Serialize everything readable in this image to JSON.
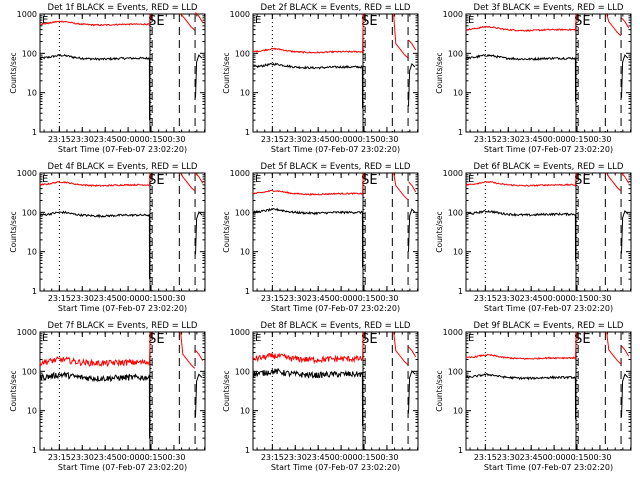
{
  "colors": {
    "background": "#ffffff",
    "axis": "#000000",
    "events": "#000000",
    "lld": "#ff0000"
  },
  "shared": {
    "ylabel": "Counts/sec",
    "xlabel": "Start Time (07-Feb-07 23:02:20)",
    "x_tick_labels": [
      "23:15",
      "23:30",
      "23:45",
      "00:00",
      "00:15",
      "00:30"
    ],
    "y_tick_labels": [
      "1",
      "10",
      "100",
      "1000"
    ],
    "corner_letter": "E",
    "marker_text": "SE"
  },
  "chart_data": [
    {
      "type": "line",
      "title": "Det 1f BLACK = Events, RED = LLD",
      "ylim": [
        1,
        1000
      ],
      "yscale": "log",
      "x_minutes": [
        0,
        108
      ],
      "series": [
        {
          "name": "Events",
          "level": 75
        },
        {
          "name": "LLD",
          "level": 550
        }
      ]
    },
    {
      "type": "line",
      "title": "Det 2f BLACK = Events, RED = LLD",
      "ylim": [
        1,
        1000
      ],
      "yscale": "log",
      "x_minutes": [
        0,
        108
      ],
      "series": [
        {
          "name": "Events",
          "level": 45
        },
        {
          "name": "LLD",
          "level": 110
        }
      ]
    },
    {
      "type": "line",
      "title": "Det 3f BLACK = Events, RED = LLD",
      "ylim": [
        1,
        1000
      ],
      "yscale": "log",
      "x_minutes": [
        0,
        108
      ],
      "series": [
        {
          "name": "Events",
          "level": 75
        },
        {
          "name": "LLD",
          "level": 400
        }
      ]
    },
    {
      "type": "line",
      "title": "Det 4f BLACK = Events, RED = LLD",
      "ylim": [
        1,
        1000
      ],
      "yscale": "log",
      "x_minutes": [
        0,
        108
      ],
      "series": [
        {
          "name": "Events",
          "level": 85
        },
        {
          "name": "LLD",
          "level": 500
        }
      ]
    },
    {
      "type": "line",
      "title": "Det 5f BLACK = Events, RED = LLD",
      "ylim": [
        1,
        1000
      ],
      "yscale": "log",
      "x_minutes": [
        0,
        108
      ],
      "series": [
        {
          "name": "Events",
          "level": 100
        },
        {
          "name": "LLD",
          "level": 300
        }
      ]
    },
    {
      "type": "line",
      "title": "Det 6f BLACK = Events, RED = LLD",
      "ylim": [
        1,
        1000
      ],
      "yscale": "log",
      "x_minutes": [
        0,
        108
      ],
      "series": [
        {
          "name": "Events",
          "level": 90
        },
        {
          "name": "LLD",
          "level": 500
        }
      ]
    },
    {
      "type": "line",
      "title": "Det 7f BLACK = Events, RED = LLD",
      "ylim": [
        1,
        1000
      ],
      "yscale": "log",
      "x_minutes": [
        0,
        108
      ],
      "series": [
        {
          "name": "Events",
          "level": 70
        },
        {
          "name": "LLD",
          "level": 170
        }
      ]
    },
    {
      "type": "line",
      "title": "Det 8f BLACK = Events, RED = LLD",
      "ylim": [
        1,
        1000
      ],
      "yscale": "log",
      "x_minutes": [
        0,
        108
      ],
      "series": [
        {
          "name": "Events",
          "level": 85
        },
        {
          "name": "LLD",
          "level": 210
        }
      ]
    },
    {
      "type": "line",
      "title": "Det 9f BLACK = Events, RED = LLD",
      "ylim": [
        1,
        1000
      ],
      "yscale": "log",
      "x_minutes": [
        0,
        108
      ],
      "series": [
        {
          "name": "Events",
          "level": 70
        },
        {
          "name": "LLD",
          "level": 220
        }
      ]
    }
  ]
}
